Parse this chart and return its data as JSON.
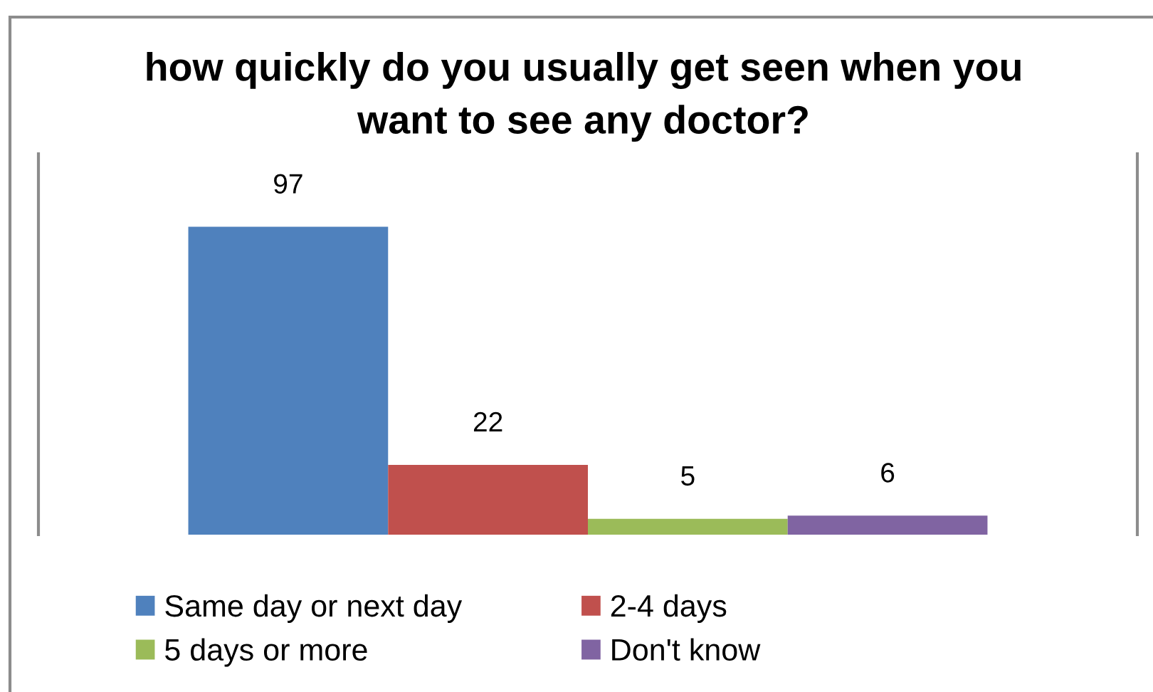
{
  "chart_data": {
    "type": "bar",
    "title": "how quickly do you usually get seen when you\nwant to see any doctor?",
    "categories": [
      null
    ],
    "series": [
      {
        "name": "Same day or next day",
        "color": "#4f81bd",
        "values": [
          97
        ]
      },
      {
        "name": "2-4 days",
        "color": "#c0504d",
        "values": [
          22
        ]
      },
      {
        "name": "5 days or more",
        "color": "#9bbb59",
        "values": [
          5
        ]
      },
      {
        "name": "Don't know",
        "color": "#8064a2",
        "values": [
          6
        ]
      }
    ],
    "data_labels": true,
    "legend": "bottom"
  }
}
